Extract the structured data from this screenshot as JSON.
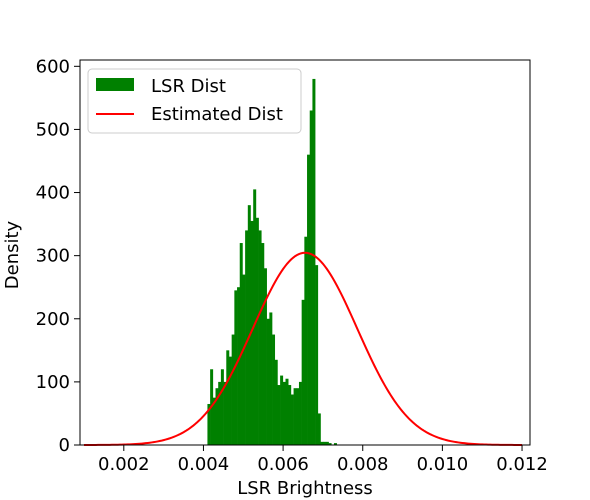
{
  "chart_data": {
    "type": "bar",
    "xlabel": "LSR Brightness",
    "ylabel": "Density",
    "xlim": [
      0.0009,
      0.0122
    ],
    "ylim": [
      0,
      610
    ],
    "xticks": [
      0.002,
      0.004,
      0.006,
      0.008,
      0.01,
      0.012
    ],
    "xtick_labels": [
      "0.002",
      "0.004",
      "0.006",
      "0.008",
      "0.010",
      "0.012"
    ],
    "yticks": [
      0,
      100,
      200,
      300,
      400,
      500,
      600
    ],
    "ytick_labels": [
      "0",
      "100",
      "200",
      "300",
      "400",
      "500",
      "600"
    ],
    "grid": false,
    "legend_position": "top-left",
    "colors": {
      "histogram": "#008000",
      "curve": "#ff0000"
    },
    "series": [
      {
        "name": "LSR Dist",
        "type": "histogram",
        "bin_start": 0.0041,
        "bin_width": 6.76e-05,
        "values": [
          65,
          120,
          75,
          90,
          100,
          120,
          100,
          150,
          140,
          175,
          245,
          250,
          320,
          270,
          340,
          380,
          355,
          405,
          360,
          340,
          320,
          280,
          200,
          210,
          175,
          135,
          95,
          110,
          100,
          105,
          95,
          80,
          90,
          90,
          100,
          230,
          330,
          460,
          530,
          580,
          285,
          50,
          5,
          5,
          5,
          3,
          0,
          3,
          0
        ]
      },
      {
        "name": "Estimated Dist",
        "type": "line",
        "distribution": "normal",
        "mean": 0.00655,
        "std": 0.00131,
        "x_range": [
          0.001,
          0.012
        ]
      }
    ]
  }
}
